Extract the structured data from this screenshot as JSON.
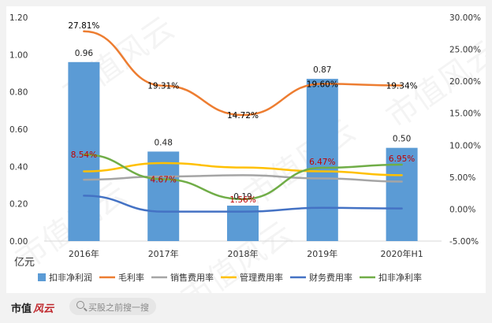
{
  "chart_data": {
    "type": "bar+line",
    "categories": [
      "2016年",
      "2017年",
      "2018年",
      "2019年",
      "2020年H1"
    ],
    "ylabel": "亿元",
    "y_left_ticks": [
      "0.00",
      "0.20",
      "0.40",
      "0.60",
      "0.80",
      "1.00",
      "1.20"
    ],
    "y_left_range": [
      0,
      1.2
    ],
    "y_right_ticks": [
      "-5.00%",
      "0.00%",
      "5.00%",
      "10.00%",
      "15.00%",
      "20.00%",
      "25.00%",
      "30.00%"
    ],
    "y_right_range": [
      -5,
      30
    ],
    "bar_series": {
      "name": "扣非净利润",
      "values": [
        0.96,
        0.48,
        0.19,
        0.87,
        0.5
      ],
      "labels": [
        "0.96",
        "0.48",
        "0.19",
        "0.87",
        "0.50"
      ],
      "color": "#5b9bd5"
    },
    "line_series": [
      {
        "name": "毛利率",
        "values": [
          27.81,
          19.31,
          14.72,
          19.6,
          19.34
        ],
        "labels": [
          "27.81%",
          "19.31%",
          "14.72%",
          "19.60%",
          "19.34%"
        ],
        "color": "#ed7d31",
        "label_color": "#000000"
      },
      {
        "name": "销售费用率",
        "values": [
          4.6,
          5.1,
          5.3,
          4.8,
          4.3
        ],
        "color": "#a5a5a5"
      },
      {
        "name": "管理费用率",
        "values": [
          5.9,
          7.2,
          6.5,
          5.9,
          5.3
        ],
        "color": "#ffc000"
      },
      {
        "name": "财务费用率",
        "values": [
          2.1,
          -0.4,
          -0.4,
          0.2,
          0.1
        ],
        "color": "#4472c4"
      },
      {
        "name": "扣非净利率",
        "values": [
          8.54,
          4.67,
          1.56,
          6.47,
          6.95
        ],
        "labels": [
          "8.54%",
          "4.67%",
          "1.56%",
          "6.47%",
          "6.95%"
        ],
        "color": "#70ad47",
        "label_color": "#c00000"
      }
    ],
    "legend": "bottom"
  },
  "watermark": "市值风云",
  "footer": {
    "brand": "市值",
    "brand_script": "风云",
    "search_placeholder": "买股之前搜一搜"
  }
}
